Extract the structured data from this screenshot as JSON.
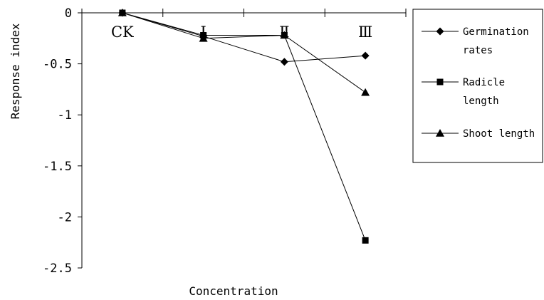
{
  "chart_data": {
    "type": "line",
    "categories": [
      "CK",
      "Ⅰ",
      "Ⅱ",
      "Ⅲ"
    ],
    "xlabel": "Concentration",
    "ylabel": "Response index",
    "ylim": [
      -2.5,
      0
    ],
    "yticks": [
      "0",
      "-0.5",
      "-1",
      "-1.5",
      "-2",
      "-2.5"
    ],
    "ytick_values": [
      0,
      -0.5,
      -1,
      -1.5,
      -2,
      -2.5
    ],
    "grid": false,
    "legend_position": "right",
    "series": [
      {
        "name": "Germination rates",
        "legend_lines": [
          "Germination",
          "rates"
        ],
        "marker": "diamond",
        "values": [
          0,
          -0.23,
          -0.48,
          -0.42
        ]
      },
      {
        "name": "Radicle length",
        "legend_lines": [
          "Radicle",
          "length"
        ],
        "marker": "square",
        "values": [
          0,
          -0.22,
          -0.22,
          -2.23
        ]
      },
      {
        "name": "Shoot length",
        "legend_lines": [
          "Shoot length"
        ],
        "marker": "triangle",
        "values": [
          0,
          -0.25,
          -0.22,
          -0.78
        ]
      }
    ]
  }
}
